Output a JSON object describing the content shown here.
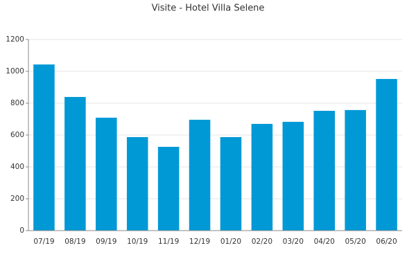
{
  "chart_data": {
    "type": "bar",
    "title": "Visite - Hotel Villa Selene",
    "categories": [
      "07/19",
      "08/19",
      "09/19",
      "10/19",
      "11/19",
      "12/19",
      "01/20",
      "02/20",
      "03/20",
      "04/20",
      "05/20",
      "06/20"
    ],
    "values": [
      1043,
      839,
      709,
      587,
      526,
      696,
      587,
      670,
      683,
      752,
      757,
      952
    ],
    "color": "#0099d6",
    "ylim": [
      0,
      1200
    ],
    "yticks": [
      0,
      200,
      400,
      600,
      800,
      1000,
      1200
    ],
    "grid": true
  }
}
